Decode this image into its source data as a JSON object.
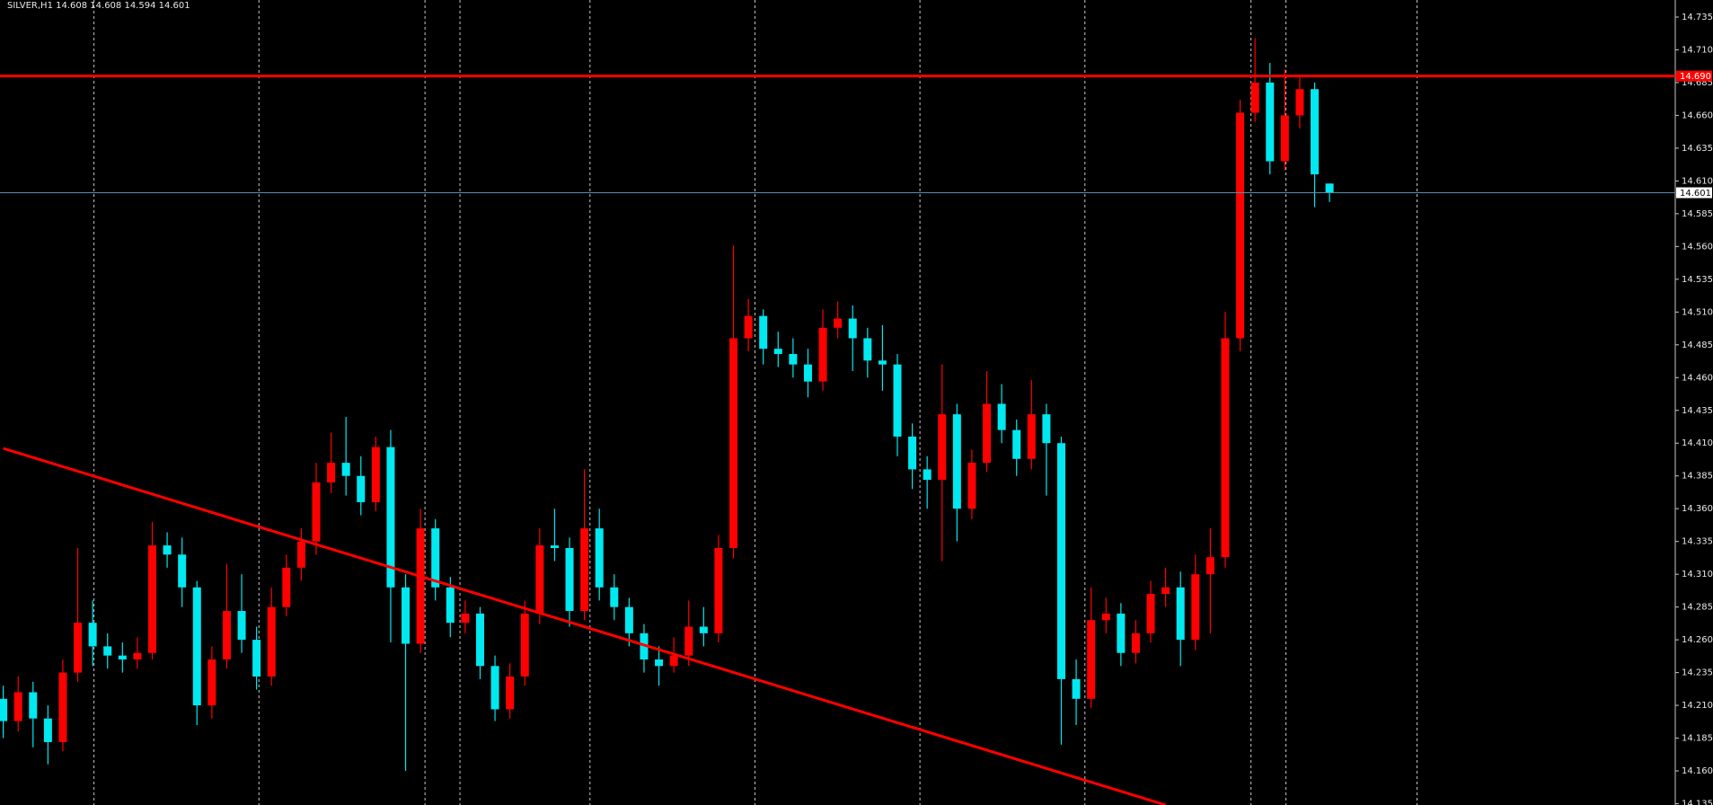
{
  "chart_data": {
    "type": "candlestick",
    "title": "SILVER,H1  14.608 14.608 14.594 14.601",
    "up_color": "#ff0000",
    "down_color": "#00e8f0",
    "open": [
      14.215,
      14.198,
      14.22,
      14.2,
      14.182,
      14.235,
      14.273,
      14.255,
      14.248,
      14.245,
      14.25,
      14.332,
      14.325,
      14.3,
      14.21,
      14.245,
      14.282,
      14.26,
      14.232,
      14.285,
      14.315,
      14.335,
      14.38,
      14.395,
      14.385,
      14.365,
      14.407,
      14.3,
      14.257,
      14.345,
      14.3,
      14.273,
      14.28,
      14.24,
      14.207,
      14.232,
      14.28,
      14.332,
      14.33,
      14.282,
      14.345,
      14.3,
      14.285,
      14.265,
      14.245,
      14.24,
      14.248,
      14.27,
      14.265,
      14.33,
      14.49,
      14.507,
      14.482,
      14.478,
      14.47,
      14.457,
      14.498,
      14.505,
      14.49,
      14.473,
      14.47,
      14.415,
      14.39,
      14.382,
      14.432,
      14.36,
      14.395,
      14.44,
      14.42,
      14.398,
      14.432,
      14.41,
      14.23,
      14.215,
      14.275,
      14.28,
      14.25,
      14.265,
      14.295,
      14.3,
      14.26,
      14.31,
      14.323,
      14.49,
      14.662,
      14.685,
      14.625,
      14.66,
      14.68,
      14.608
    ],
    "high": [
      14.225,
      14.232,
      14.228,
      14.21,
      14.245,
      14.33,
      14.29,
      14.265,
      14.258,
      14.262,
      14.35,
      14.342,
      14.338,
      14.305,
      14.255,
      14.318,
      14.31,
      14.27,
      14.3,
      14.325,
      14.345,
      14.395,
      14.418,
      14.43,
      14.4,
      14.415,
      14.42,
      14.31,
      14.36,
      14.352,
      14.308,
      14.29,
      14.285,
      14.248,
      14.242,
      14.29,
      14.345,
      14.36,
      14.338,
      14.39,
      14.36,
      14.31,
      14.292,
      14.272,
      14.255,
      14.262,
      14.29,
      14.285,
      14.34,
      14.561,
      14.52,
      14.512,
      14.495,
      14.49,
      14.482,
      14.512,
      14.518,
      14.515,
      14.498,
      14.5,
      14.478,
      14.425,
      14.4,
      14.47,
      14.44,
      14.405,
      14.465,
      14.455,
      14.428,
      14.458,
      14.44,
      14.415,
      14.245,
      14.3,
      14.292,
      14.288,
      14.275,
      14.305,
      14.315,
      14.312,
      14.325,
      14.345,
      14.51,
      14.672,
      14.719,
      14.7,
      14.695,
      14.69,
      14.685,
      14.608
    ],
    "low": [
      14.185,
      14.19,
      14.178,
      14.165,
      14.175,
      14.228,
      14.24,
      14.238,
      14.235,
      14.238,
      14.245,
      14.315,
      14.285,
      14.195,
      14.2,
      14.238,
      14.25,
      14.222,
      14.225,
      14.278,
      14.305,
      14.325,
      14.372,
      14.37,
      14.355,
      14.358,
      14.258,
      14.16,
      14.25,
      14.29,
      14.262,
      14.265,
      14.23,
      14.198,
      14.2,
      14.225,
      14.272,
      14.32,
      14.27,
      14.275,
      14.29,
      14.275,
      14.255,
      14.235,
      14.225,
      14.235,
      14.24,
      14.255,
      14.258,
      14.322,
      14.48,
      14.47,
      14.468,
      14.46,
      14.445,
      14.45,
      14.49,
      14.465,
      14.46,
      14.45,
      14.4,
      14.375,
      14.36,
      14.32,
      14.335,
      14.352,
      14.388,
      14.41,
      14.385,
      14.39,
      14.37,
      14.18,
      14.195,
      14.208,
      14.265,
      14.24,
      14.242,
      14.258,
      14.285,
      14.24,
      14.252,
      14.265,
      14.315,
      14.48,
      14.655,
      14.615,
      14.618,
      14.65,
      14.59,
      14.594
    ],
    "close": [
      14.198,
      14.22,
      14.2,
      14.182,
      14.235,
      14.273,
      14.255,
      14.248,
      14.245,
      14.25,
      14.332,
      14.325,
      14.3,
      14.21,
      14.245,
      14.282,
      14.26,
      14.232,
      14.285,
      14.315,
      14.335,
      14.38,
      14.395,
      14.385,
      14.365,
      14.407,
      14.3,
      14.257,
      14.345,
      14.3,
      14.273,
      14.28,
      14.24,
      14.207,
      14.232,
      14.28,
      14.332,
      14.33,
      14.282,
      14.345,
      14.3,
      14.285,
      14.265,
      14.245,
      14.24,
      14.248,
      14.27,
      14.265,
      14.33,
      14.49,
      14.507,
      14.482,
      14.478,
      14.47,
      14.457,
      14.498,
      14.505,
      14.49,
      14.473,
      14.47,
      14.415,
      14.39,
      14.382,
      14.432,
      14.36,
      14.395,
      14.44,
      14.42,
      14.398,
      14.432,
      14.41,
      14.23,
      14.215,
      14.275,
      14.28,
      14.25,
      14.265,
      14.295,
      14.3,
      14.26,
      14.31,
      14.323,
      14.49,
      14.662,
      14.685,
      14.625,
      14.66,
      14.68,
      14.615,
      14.601
    ],
    "ylim": [
      14.134,
      14.748
    ],
    "yticks": [
      14.135,
      {
        "value": 14.16,
        "label": "14.160"
      },
      14.185,
      {
        "value": 14.21,
        "label": "14.210"
      },
      14.235,
      {
        "value": 14.26,
        "label": "14.260"
      },
      14.285,
      {
        "value": 14.31,
        "label": "14.310"
      },
      14.335,
      {
        "value": 14.36,
        "label": "14.360"
      },
      14.385,
      {
        "value": 14.41,
        "label": "14.410"
      },
      14.435,
      {
        "value": 14.46,
        "label": "14.460"
      },
      14.485,
      {
        "value": 14.51,
        "label": "14.510"
      },
      14.535,
      {
        "value": 14.56,
        "label": "14.560"
      },
      14.585,
      {
        "value": 14.61,
        "label": "14.610"
      },
      14.635,
      {
        "value": 14.66,
        "label": "14.660"
      },
      14.685,
      {
        "value": 14.71,
        "label": "14.710"
      },
      14.735
    ],
    "hlines": [
      {
        "value": 14.69,
        "label": "14.690",
        "color": "#ff0000"
      },
      {
        "value": 14.601,
        "label": "14.601",
        "color": "#5a8fae"
      }
    ],
    "trendline": {
      "color": "#ff0000",
      "x": [
        0,
        78
      ],
      "values": [
        14.406,
        14.134
      ]
    }
  }
}
